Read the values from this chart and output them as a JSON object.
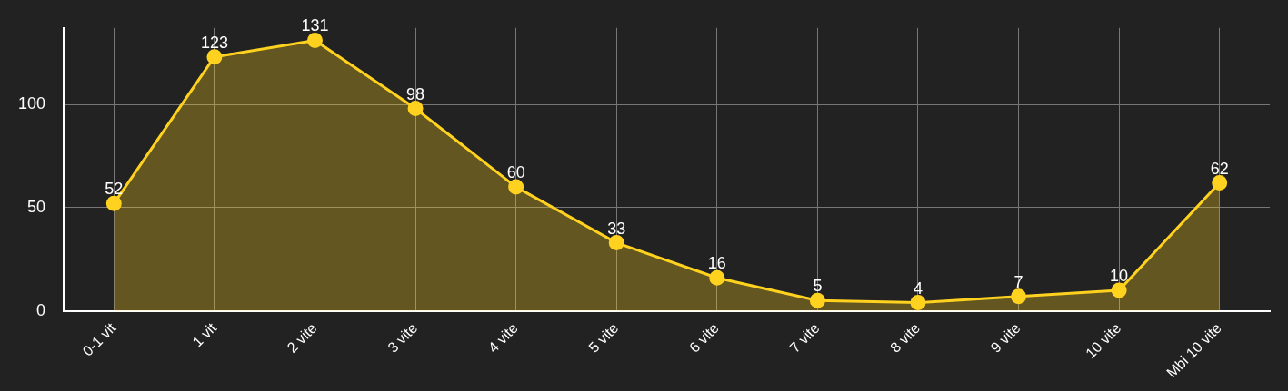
{
  "chart_data": {
    "type": "area",
    "categories": [
      "0-1 vit",
      "1 vit",
      "2 vite",
      "3 vite",
      "4 vite",
      "5 vite",
      "6 vite",
      "7 vite",
      "8 vite",
      "9 vite",
      "10 vite",
      "Mbi 10 vite"
    ],
    "series": [
      {
        "color": "#ffd21f",
        "values": [
          52,
          123,
          131,
          98,
          60,
          33,
          16,
          5,
          4,
          7,
          10,
          62
        ]
      }
    ],
    "ylim": [
      0,
      137
    ],
    "yticks": [
      0,
      50,
      100
    ],
    "grid": true,
    "legend": false,
    "marker": "circle",
    "line_style": "solid",
    "data_labels": true
  }
}
